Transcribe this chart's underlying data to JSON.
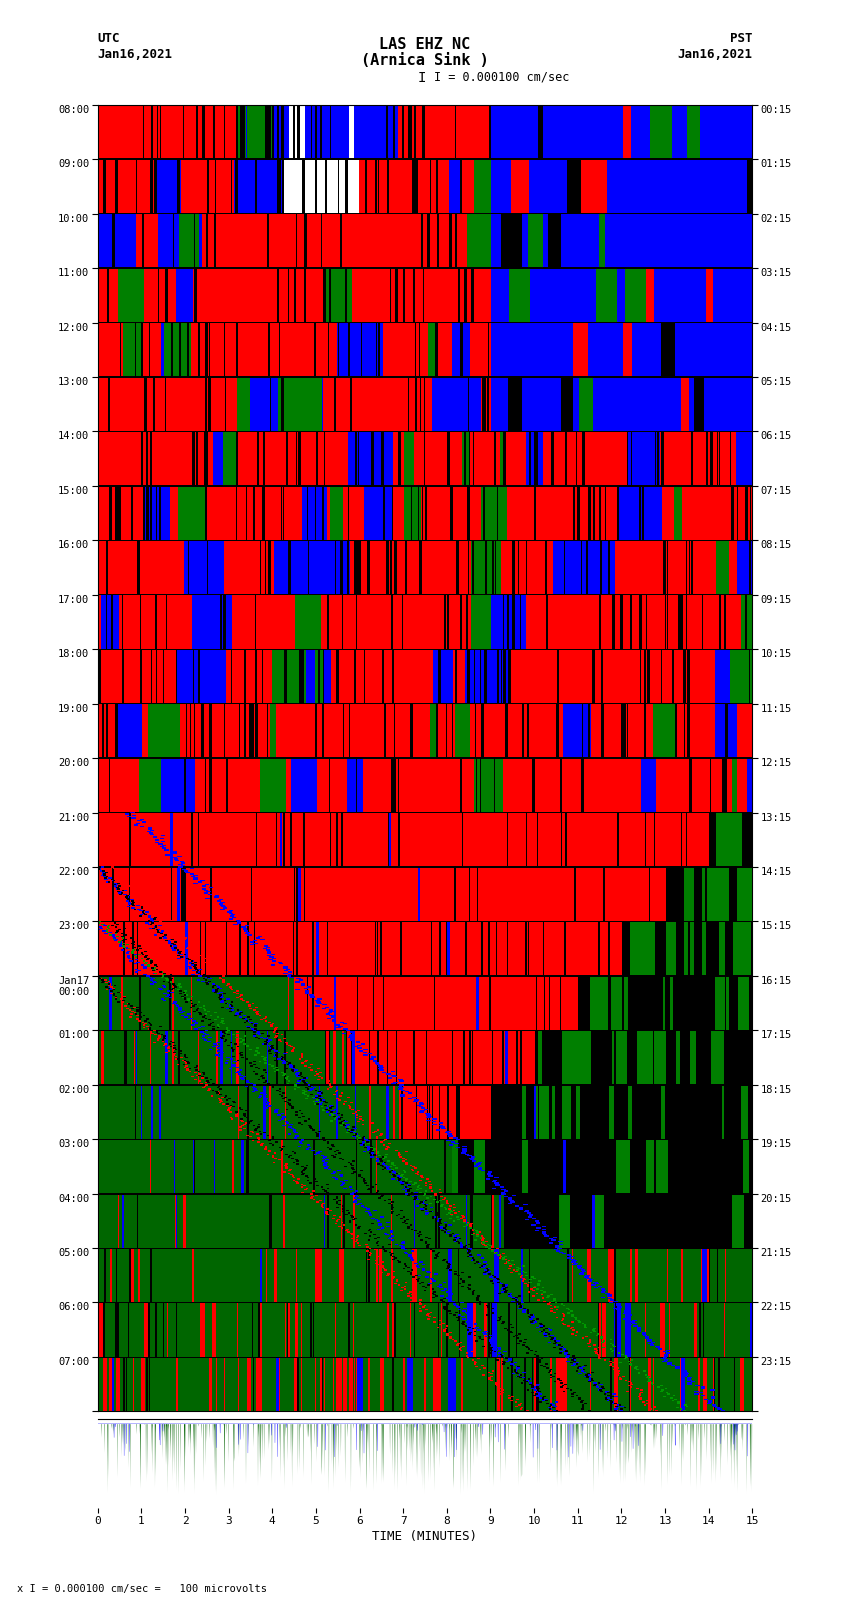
{
  "title_line1": "LAS EHZ NC",
  "title_line2": "(Arnica Sink )",
  "scale_label": "I = 0.000100 cm/sec",
  "bottom_scale_label": "x I = 0.000100 cm/sec =   100 microvolts",
  "utc_label": "UTC",
  "utc_date": "Jan16,2021",
  "pst_label": "PST",
  "pst_date": "Jan16,2021",
  "left_times": [
    "08:00",
    "09:00",
    "10:00",
    "11:00",
    "12:00",
    "13:00",
    "14:00",
    "15:00",
    "16:00",
    "17:00",
    "18:00",
    "19:00",
    "20:00",
    "21:00",
    "22:00",
    "23:00",
    "Jan17\n00:00",
    "01:00",
    "02:00",
    "03:00",
    "04:00",
    "05:00",
    "06:00",
    "07:00"
  ],
  "right_times": [
    "00:15",
    "01:15",
    "02:15",
    "03:15",
    "04:15",
    "05:15",
    "06:15",
    "07:15",
    "08:15",
    "09:15",
    "10:15",
    "11:15",
    "12:15",
    "13:15",
    "14:15",
    "15:15",
    "16:15",
    "17:15",
    "18:15",
    "19:15",
    "20:15",
    "21:15",
    "22:15",
    "23:15"
  ],
  "xlabel": "TIME (MINUTES)",
  "xtick_positions": [
    0,
    1,
    2,
    3,
    4,
    5,
    6,
    7,
    8,
    9,
    10,
    11,
    12,
    13,
    14,
    15
  ],
  "bg_color": "#ffffff",
  "num_rows": 24,
  "minutes_per_row": 15,
  "seed": 12345
}
